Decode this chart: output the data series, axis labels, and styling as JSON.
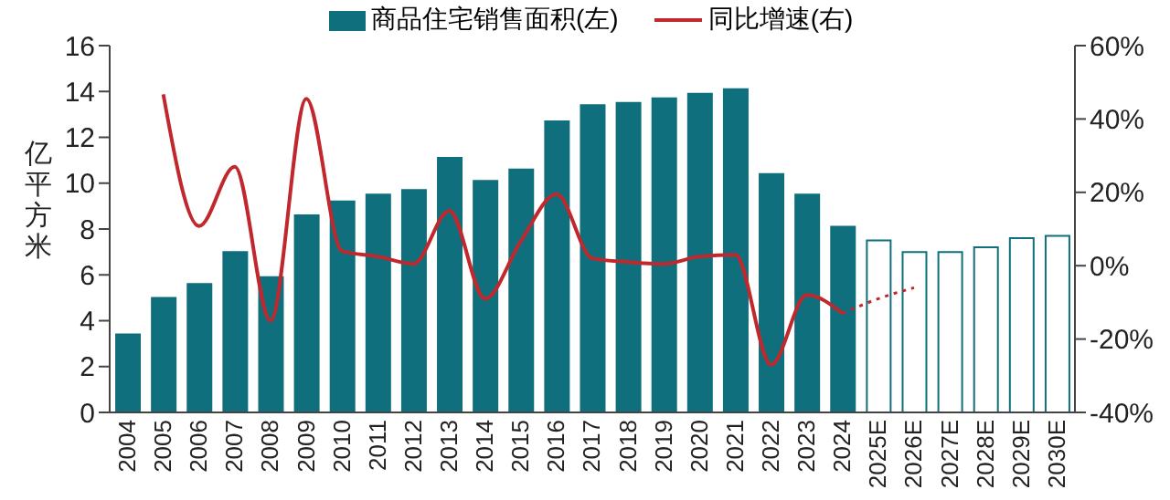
{
  "chart_data": {
    "type": "bar",
    "stacked": true,
    "ylabel": "亿平方米",
    "categories": [
      "2004",
      "2005",
      "2006",
      "2007",
      "2008",
      "2009",
      "2010",
      "2011",
      "2012",
      "2013",
      "2014",
      "2015",
      "2016",
      "2017",
      "2018",
      "2019",
      "2020",
      "2021",
      "2022",
      "2023",
      "2024",
      "2025E",
      "2026E",
      "2027E",
      "2028E",
      "2029E",
      "2030E"
    ],
    "series": [
      {
        "name": "商品住宅销售面积(左)",
        "color": "#0f6f7c",
        "values": [
          3.4,
          5.0,
          5.6,
          7.0,
          5.9,
          8.6,
          9.2,
          9.5,
          9.7,
          11.1,
          10.1,
          10.6,
          12.7,
          13.4,
          13.5,
          13.7,
          13.9,
          14.1,
          10.4,
          9.5,
          8.1,
          null,
          null,
          null,
          null,
          null,
          null
        ]
      },
      {
        "color": "#ffffff",
        "values": [
          null,
          null,
          null,
          null,
          null,
          null,
          null,
          null,
          null,
          null,
          null,
          null,
          null,
          null,
          null,
          null,
          null,
          null,
          null,
          null,
          null,
          7.5,
          7.0,
          7.0,
          7.2,
          7.6,
          7.7
        ]
      },
      {
        "name": "同比增速(右)",
        "type": "line",
        "axis": "y2",
        "color": "#c0282d",
        "line_style": "solid",
        "values": [
          null,
          46.7,
          10.8,
          27,
          -15,
          45.5,
          4,
          2.5,
          0.5,
          15,
          -9,
          6.7,
          19.5,
          2,
          1,
          0.5,
          2.5,
          3,
          -27,
          -8,
          -13,
          null,
          null,
          null,
          null,
          null,
          null
        ]
      },
      {
        "type": "line",
        "axis": "y2",
        "color": "#c0282d",
        "line_style": "dotted",
        "values": [
          null,
          null,
          null,
          null,
          null,
          null,
          null,
          null,
          null,
          null,
          null,
          null,
          null,
          null,
          null,
          null,
          null,
          null,
          null,
          null,
          -13,
          -9,
          -6,
          null,
          null,
          null,
          null
        ]
      }
    ],
    "ylim": [
      0,
      16
    ],
    "yticks": [
      0,
      2,
      4,
      6,
      8,
      10,
      12,
      14,
      16
    ],
    "y2lim": [
      -40,
      60
    ],
    "y2ticks": [
      {
        "value": -40,
        "label": "-40%"
      },
      {
        "value": -20,
        "label": "-20%"
      },
      {
        "value": 0,
        "label": "0%"
      },
      {
        "value": 20,
        "label": "20%"
      },
      {
        "value": 40,
        "label": "40%"
      },
      {
        "value": 60,
        "label": "60%"
      }
    ],
    "grid": false,
    "legend": "top",
    "marker": "none"
  }
}
